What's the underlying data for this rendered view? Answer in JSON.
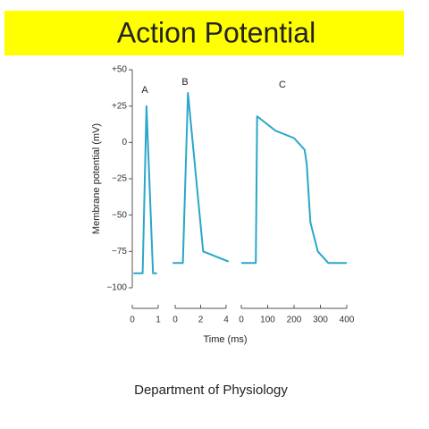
{
  "slide": {
    "title": "Action Potential",
    "footer": "Department of Physiology"
  },
  "chart_data": [
    {
      "type": "line",
      "title": "A",
      "ylabel": "Membrane potential (mV)",
      "ylim": [
        -100,
        50
      ],
      "yticks": [
        {
          "value": 50,
          "label": "+50"
        },
        {
          "value": 25,
          "label": "+25"
        },
        0,
        {
          "value": -25,
          "label": "−25"
        },
        {
          "value": -50,
          "label": "−50"
        },
        {
          "value": -75,
          "label": "−75"
        },
        {
          "value": -100,
          "label": "−100"
        }
      ],
      "x": [
        0.05,
        0.4,
        0.55,
        0.8,
        0.95
      ],
      "values": [
        -90,
        -90,
        25,
        -90,
        -90
      ],
      "xlim": [
        0,
        1
      ],
      "xticks": [
        0,
        1
      ],
      "color": "#2aa7c9"
    },
    {
      "type": "line",
      "title": "B",
      "xlabel": "Time (ms)",
      "x": [
        -0.2,
        0.6,
        1.0,
        2.2,
        4.2
      ],
      "values": [
        -83,
        -83,
        34,
        -75,
        -82
      ],
      "xlim": [
        0,
        4
      ],
      "xticks": [
        0,
        2,
        4
      ],
      "color": "#2aa7c9"
    },
    {
      "type": "line",
      "title": "C",
      "x": [
        0,
        55,
        60,
        130,
        200,
        240,
        248,
        262,
        290,
        330,
        400
      ],
      "values": [
        -83,
        -83,
        18,
        8,
        3,
        -5,
        -15,
        -55,
        -75,
        -83,
        -83
      ],
      "xlim": [
        0,
        400
      ],
      "xticks": [
        0,
        100,
        200,
        300,
        400
      ],
      "color": "#2aa7c9"
    }
  ]
}
